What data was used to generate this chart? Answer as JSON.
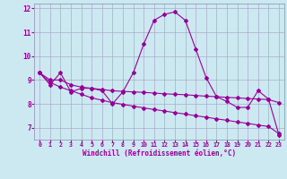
{
  "title": "",
  "xlabel": "Windchill (Refroidissement éolien,°C)",
  "background_color": "#cce8f0",
  "line_color": "#990099",
  "grid_color": "#aaaacc",
  "spine_color": "#9999bb",
  "xlim": [
    -0.5,
    23.5
  ],
  "ylim": [
    6.5,
    12.2
  ],
  "yticks": [
    7,
    8,
    9,
    10,
    11,
    12
  ],
  "xticks": [
    0,
    1,
    2,
    3,
    4,
    5,
    6,
    7,
    8,
    9,
    10,
    11,
    12,
    13,
    14,
    15,
    16,
    17,
    18,
    19,
    20,
    21,
    22,
    23
  ],
  "line1_x": [
    0,
    1,
    2,
    3,
    4,
    5,
    6,
    7,
    8,
    9,
    10,
    11,
    12,
    13,
    14,
    15,
    16,
    17,
    18,
    19,
    20,
    21,
    22,
    23
  ],
  "line1_y": [
    9.3,
    8.8,
    9.3,
    8.5,
    8.65,
    8.65,
    8.55,
    8.0,
    8.5,
    9.3,
    10.5,
    11.5,
    11.75,
    11.85,
    11.5,
    10.3,
    9.1,
    8.3,
    8.1,
    7.85,
    7.85,
    8.55,
    8.2,
    6.7
  ],
  "line2_x": [
    0,
    1,
    2,
    3,
    4,
    5,
    6,
    7,
    8,
    9,
    10,
    11,
    12,
    13,
    14,
    15,
    16,
    17,
    18,
    19,
    20,
    21,
    22,
    23
  ],
  "line2_y": [
    9.3,
    8.9,
    8.7,
    8.55,
    8.4,
    8.25,
    8.15,
    8.05,
    7.98,
    7.9,
    7.83,
    7.76,
    7.7,
    7.63,
    7.57,
    7.5,
    7.44,
    7.37,
    7.31,
    7.24,
    7.18,
    7.11,
    7.05,
    6.75
  ],
  "line3_x": [
    0,
    1,
    2,
    3,
    4,
    5,
    6,
    7,
    8,
    9,
    10,
    11,
    12,
    13,
    14,
    15,
    16,
    17,
    18,
    19,
    20,
    21,
    22,
    23
  ],
  "line3_y": [
    9.3,
    9.0,
    9.0,
    8.8,
    8.7,
    8.65,
    8.6,
    8.55,
    8.52,
    8.5,
    8.48,
    8.45,
    8.42,
    8.4,
    8.38,
    8.35,
    8.32,
    8.3,
    8.27,
    8.25,
    8.22,
    8.2,
    8.18,
    8.05
  ]
}
